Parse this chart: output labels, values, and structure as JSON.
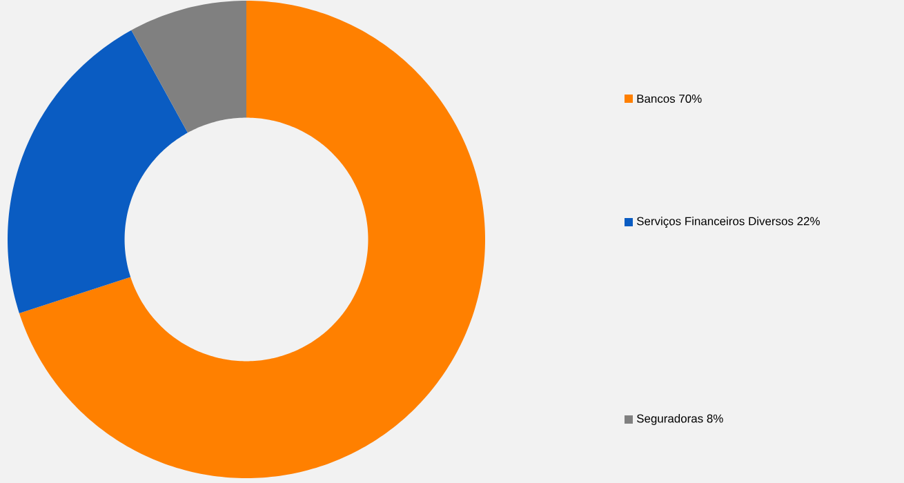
{
  "chart_data": {
    "type": "donut",
    "categories": [
      "Bancos 70%",
      "Serviços Financeiros Diversos 22%",
      "Seguradoras 8%"
    ],
    "values": [
      70,
      22,
      8
    ],
    "colors": [
      "#ff8000",
      "#0a5cc2",
      "#808080"
    ],
    "legend": "right"
  }
}
